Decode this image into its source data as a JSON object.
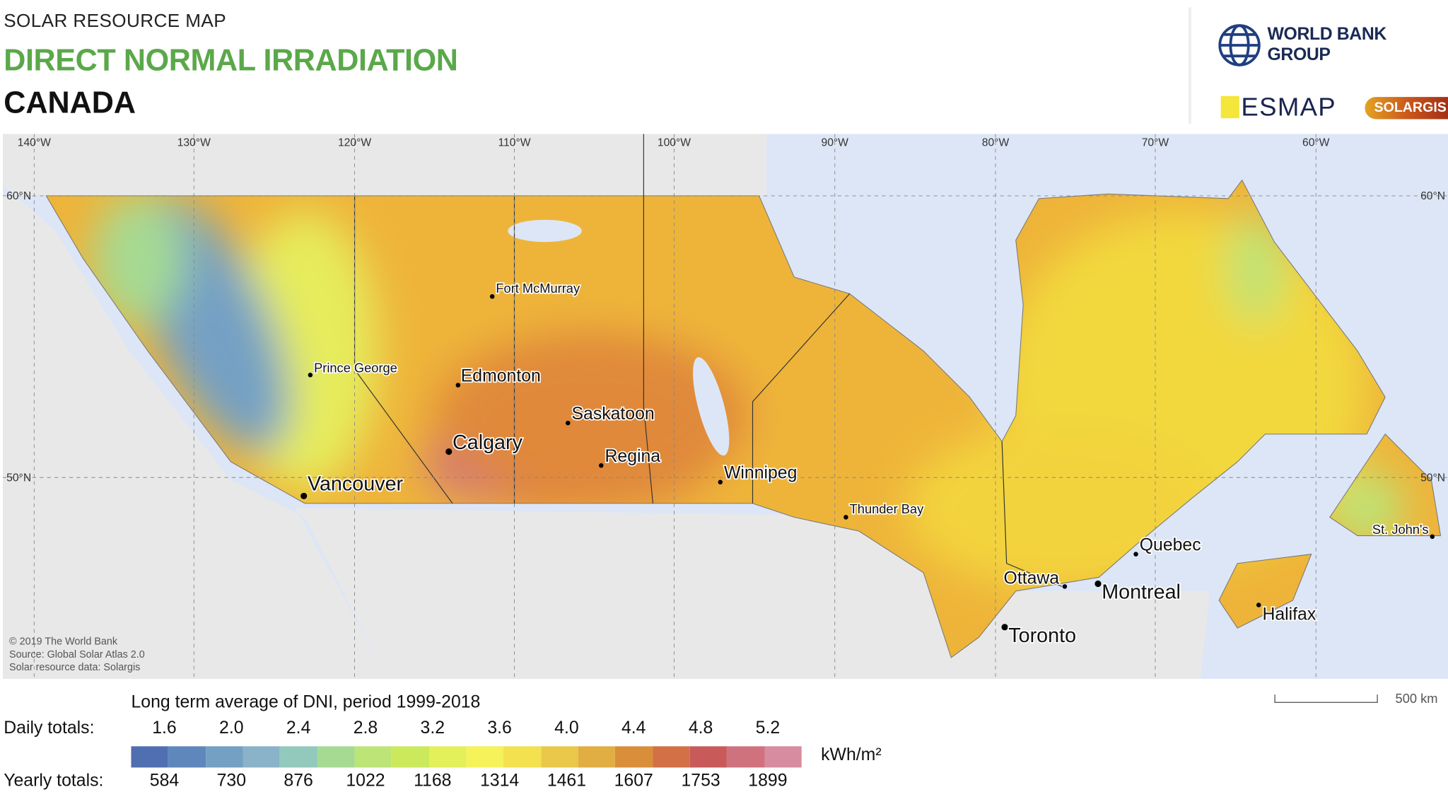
{
  "header": {
    "kicker": "SOLAR RESOURCE MAP",
    "title": "DIRECT NORMAL IRRADIATION",
    "country": "CANADA"
  },
  "logos": {
    "world_bank": "WORLD BANK GROUP",
    "esmap": "ESMAP",
    "solargis": "SOLARGIS"
  },
  "map": {
    "longitude_labels": [
      "140°W",
      "130°W",
      "120°W",
      "110°W",
      "100°W",
      "90°W",
      "80°W",
      "70°W",
      "60°W"
    ],
    "latitude_labels": [
      "60°N",
      "50°N"
    ],
    "cities": [
      {
        "name": "Fort McMurray",
        "size": "small"
      },
      {
        "name": "Prince George",
        "size": "small"
      },
      {
        "name": "Edmonton",
        "size": "medium"
      },
      {
        "name": "Saskatoon",
        "size": "medium"
      },
      {
        "name": "Calgary",
        "size": "large"
      },
      {
        "name": "Regina",
        "size": "medium"
      },
      {
        "name": "Vancouver",
        "size": "large"
      },
      {
        "name": "Winnipeg",
        "size": "medium"
      },
      {
        "name": "Thunder Bay",
        "size": "small"
      },
      {
        "name": "Quebec",
        "size": "medium"
      },
      {
        "name": "Ottawa",
        "size": "medium"
      },
      {
        "name": "Montreal",
        "size": "large"
      },
      {
        "name": "Toronto",
        "size": "large"
      },
      {
        "name": "Halifax",
        "size": "medium"
      },
      {
        "name": "St. John's",
        "size": "small"
      }
    ],
    "credits": [
      "© 2019 The World Bank",
      "Source: Global Solar Atlas 2.0",
      "Solar resource data: Solargis"
    ],
    "colors": {
      "water": "#dde6f6",
      "land": "#e8e8e8"
    }
  },
  "legend": {
    "title": "Long term average of DNI, period 1999-2018",
    "daily_label": "Daily totals:",
    "yearly_label": "Yearly totals:",
    "daily_ticks": [
      "1.6",
      "2.0",
      "2.4",
      "2.8",
      "3.2",
      "3.6",
      "4.0",
      "4.4",
      "4.8",
      "5.2"
    ],
    "yearly_ticks": [
      "584",
      "730",
      "876",
      "1022",
      "1168",
      "1314",
      "1461",
      "1607",
      "1753",
      "1899"
    ],
    "unit": "kWh/m²",
    "colors": [
      "#4f6fb0",
      "#5f87bb",
      "#74a0c4",
      "#8ab3c9",
      "#93c9bd",
      "#a6da93",
      "#bde477",
      "#cbe95c",
      "#e3f05a",
      "#f5f25a",
      "#f3e150",
      "#e9c84a",
      "#e0ae43",
      "#d98e3a",
      "#d27046",
      "#c95a5a",
      "#d0727e",
      "#d78d9f"
    ]
  },
  "scale_bar": {
    "label": "500 km"
  }
}
